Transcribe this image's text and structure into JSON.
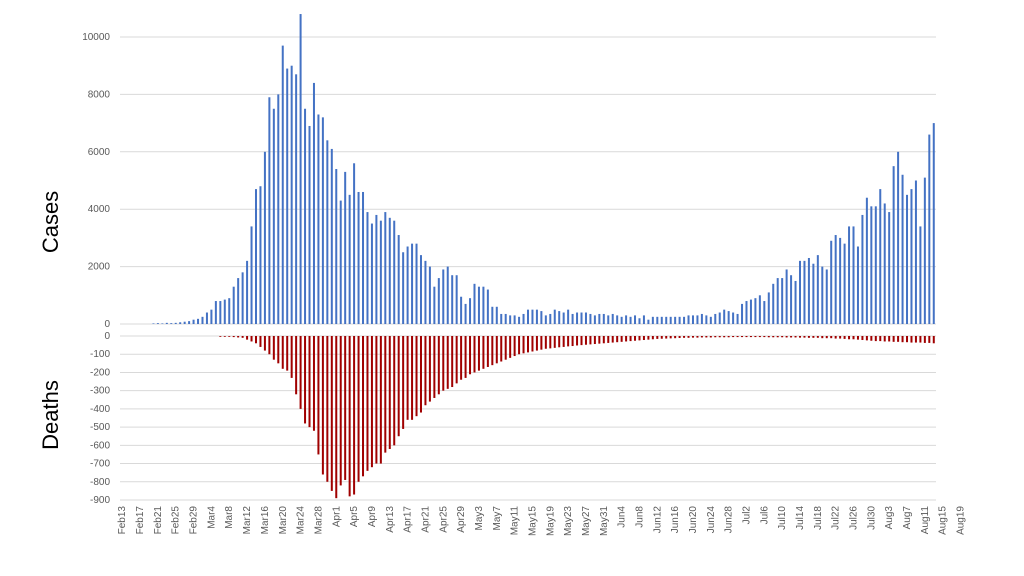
{
  "chart_data": [
    {
      "type": "bar",
      "ylabel": "Cases",
      "ylim": [
        0,
        10000
      ],
      "yticks": [
        0,
        2000,
        4000,
        6000,
        8000,
        10000
      ],
      "ytick_labels": [
        "0",
        "2000",
        "4000",
        "6000",
        "8000",
        "10000"
      ],
      "grid": true,
      "color": "#4472c4",
      "start_date": "2020-02-13",
      "values": [
        0,
        0,
        0,
        0,
        0,
        0,
        0,
        20,
        30,
        20,
        40,
        30,
        40,
        60,
        80,
        100,
        150,
        180,
        250,
        400,
        500,
        800,
        800,
        850,
        900,
        1300,
        1600,
        1800,
        2200,
        3400,
        4700,
        4800,
        6000,
        7900,
        7500,
        8000,
        9700,
        8900,
        9000,
        8700,
        10800,
        7500,
        6900,
        8400,
        7300,
        7200,
        6400,
        6100,
        5400,
        4300,
        5300,
        4500,
        5600,
        4600,
        4600,
        3900,
        3500,
        3800,
        3600,
        3900,
        3700,
        3600,
        3100,
        2500,
        2700,
        2800,
        2800,
        2400,
        2200,
        2000,
        1300,
        1600,
        1900,
        2000,
        1700,
        1700,
        950,
        700,
        900,
        1400,
        1300,
        1300,
        1200,
        600,
        600,
        350,
        350,
        300,
        300,
        250,
        350,
        500,
        500,
        500,
        450,
        300,
        350,
        500,
        450,
        400,
        500,
        350,
        400,
        400,
        400,
        350,
        300,
        350,
        350,
        300,
        350,
        300,
        250,
        300,
        250,
        300,
        200,
        300,
        150,
        250,
        250,
        250,
        250,
        250,
        250,
        250,
        250,
        300,
        300,
        300,
        350,
        300,
        250,
        350,
        400,
        500,
        450,
        400,
        350,
        700,
        800,
        850,
        900,
        1000,
        800,
        1100,
        1400,
        1600,
        1600,
        1900,
        1700,
        1500,
        2200,
        2200,
        2300,
        2100,
        2400,
        2000,
        1900,
        2900,
        3100,
        3000,
        2800,
        3400,
        3400,
        2700,
        3800,
        4400,
        4100,
        4100,
        4700,
        4200,
        3900,
        5500,
        6000,
        5200,
        4500,
        4700,
        5000,
        3400,
        5100,
        6600,
        7000
      ]
    },
    {
      "type": "bar",
      "ylabel": "Deaths",
      "ylim": [
        -900,
        0
      ],
      "yticks": [
        0,
        -100,
        -200,
        -300,
        -400,
        -500,
        -600,
        -700,
        -800,
        -900
      ],
      "ytick_labels": [
        "0",
        "-100",
        "-200",
        "-300",
        "-400",
        "-500",
        "-600",
        "-700",
        "-800",
        "-900"
      ],
      "grid": true,
      "color": "#a00000",
      "start_date": "2020-02-13",
      "values": [
        0,
        0,
        0,
        0,
        0,
        0,
        0,
        0,
        0,
        0,
        0,
        0,
        0,
        0,
        0,
        0,
        0,
        0,
        0,
        0,
        0,
        0,
        -2,
        -3,
        -4,
        -6,
        -8,
        -10,
        -20,
        -30,
        -40,
        -60,
        -80,
        -100,
        -130,
        -150,
        -180,
        -190,
        -230,
        -320,
        -400,
        -480,
        -500,
        -520,
        -650,
        -760,
        -800,
        -850,
        -890,
        -820,
        -790,
        -880,
        -870,
        -800,
        -770,
        -740,
        -720,
        -700,
        -700,
        -640,
        -620,
        -600,
        -550,
        -510,
        -460,
        -460,
        -440,
        -420,
        -380,
        -360,
        -340,
        -320,
        -300,
        -290,
        -280,
        -260,
        -240,
        -230,
        -210,
        -200,
        -190,
        -180,
        -170,
        -160,
        -150,
        -140,
        -130,
        -120,
        -110,
        -100,
        -95,
        -90,
        -85,
        -80,
        -75,
        -70,
        -68,
        -65,
        -62,
        -60,
        -57,
        -55,
        -52,
        -50,
        -48,
        -46,
        -44,
        -42,
        -40,
        -38,
        -36,
        -34,
        -32,
        -30,
        -28,
        -26,
        -24,
        -22,
        -20,
        -18,
        -16,
        -15,
        -14,
        -13,
        -12,
        -11,
        -10,
        -10,
        -9,
        -9,
        -8,
        -8,
        -8,
        -7,
        -7,
        -7,
        -7,
        -6,
        -6,
        -6,
        -6,
        -6,
        -6,
        -6,
        -6,
        -7,
        -7,
        -7,
        -7,
        -8,
        -8,
        -8,
        -9,
        -9,
        -10,
        -10,
        -10,
        -12,
        -12,
        -12,
        -14,
        -14,
        -16,
        -18,
        -18,
        -20,
        -22,
        -24,
        -26,
        -28,
        -28,
        -30,
        -30,
        -32,
        -32,
        -34,
        -34,
        -36,
        -36,
        -36,
        -38,
        -38,
        -40
      ]
    }
  ],
  "x_tick_labels": [
    "Feb13",
    "Feb17",
    "Feb21",
    "Feb25",
    "Feb29",
    "Mar4",
    "Mar8",
    "Mar12",
    "Mar16",
    "Mar20",
    "Mar24",
    "Mar28",
    "Apr1",
    "Apr5",
    "Apr9",
    "Apr13",
    "Apr17",
    "Apr21",
    "Apr25",
    "Apr29",
    "May3",
    "May7",
    "May11",
    "May15",
    "May19",
    "May23",
    "May27",
    "May31",
    "Jun4",
    "Jun8",
    "Jun12",
    "Jun16",
    "Jun20",
    "Jun24",
    "Jun28",
    "Jul2",
    "Jul6",
    "Jul10",
    "Jul14",
    "Jul18",
    "Jul22",
    "Jul26",
    "Jul30",
    "Aug3",
    "Aug7",
    "Aug11",
    "Aug15",
    "Aug19"
  ]
}
